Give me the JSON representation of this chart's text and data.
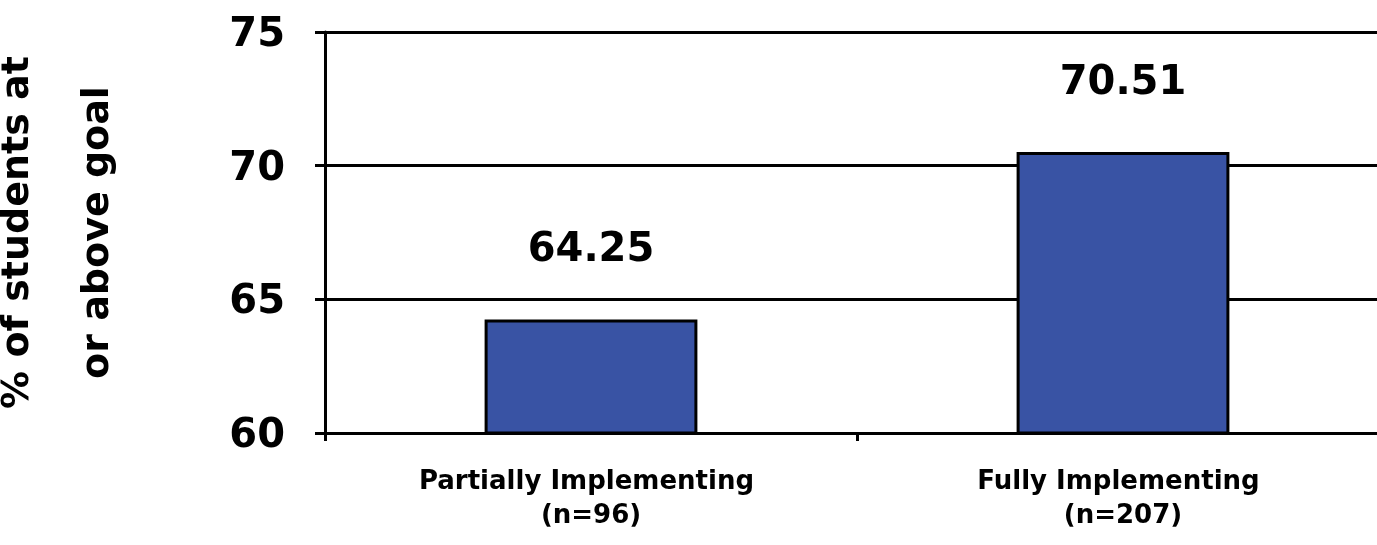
{
  "chart_data": {
    "type": "bar",
    "ylabel": "% of students at or above goal",
    "categories": [
      "Partially Implementing (n=96)",
      "Fully Implementing (n=207)"
    ],
    "values": [
      64.25,
      70.51
    ],
    "color": "#3953a4",
    "ylim": [
      60,
      75
    ],
    "yticks": [
      60,
      65,
      70,
      75
    ],
    "grid": "y",
    "data_labels": true
  }
}
